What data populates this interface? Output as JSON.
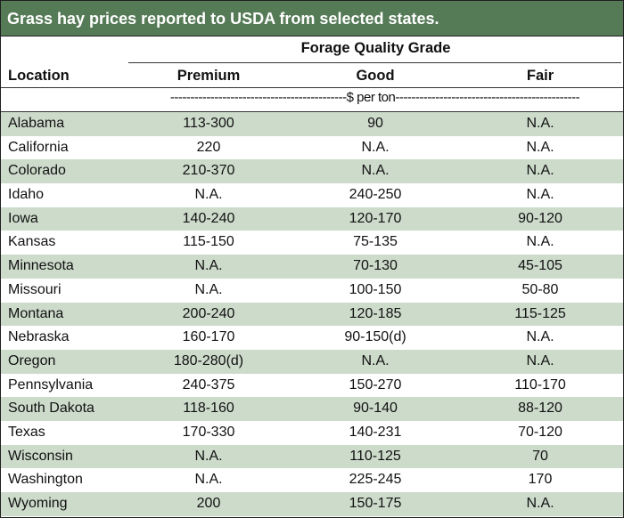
{
  "title": "Grass hay prices reported to USDA from selected states.",
  "header": {
    "group_label": "Forage Quality Grade",
    "location_label": "Location",
    "columns": [
      "Premium",
      "Good",
      "Fair"
    ],
    "unit_label": "--------------------------------------------$ per ton----------------------------------------------"
  },
  "rows": [
    {
      "location": "Alabama",
      "premium": "113-300",
      "good": "90",
      "fair": "N.A."
    },
    {
      "location": "California",
      "premium": "220",
      "good": "N.A.",
      "fair": "N.A."
    },
    {
      "location": "Colorado",
      "premium": "210-370",
      "good": "N.A.",
      "fair": "N.A."
    },
    {
      "location": "Idaho",
      "premium": "N.A.",
      "good": "240-250",
      "fair": "N.A."
    },
    {
      "location": "Iowa",
      "premium": "140-240",
      "good": "120-170",
      "fair": "90-120"
    },
    {
      "location": "Kansas",
      "premium": "115-150",
      "good": "75-135",
      "fair": "N.A."
    },
    {
      "location": "Minnesota",
      "premium": "N.A.",
      "good": "70-130",
      "fair": "45-105"
    },
    {
      "location": "Missouri",
      "premium": "N.A.",
      "good": "100-150",
      "fair": "50-80"
    },
    {
      "location": "Montana",
      "premium": "200-240",
      "good": "120-185",
      "fair": "115-125"
    },
    {
      "location": "Nebraska",
      "premium": "160-170",
      "good": "90-150(d)",
      "fair": "N.A."
    },
    {
      "location": "Oregon",
      "premium": "180-280(d)",
      "good": "N.A.",
      "fair": "N.A."
    },
    {
      "location": "Pennsylvania",
      "premium": "240-375",
      "good": "150-270",
      "fair": "110-170"
    },
    {
      "location": "South Dakota",
      "premium": "118-160",
      "good": "90-140",
      "fair": "88-120"
    },
    {
      "location": "Texas",
      "premium": "170-330",
      "good": "140-231",
      "fair": "70-120"
    },
    {
      "location": "Wisconsin",
      "premium": "N.A.",
      "good": "110-125",
      "fair": "70"
    },
    {
      "location": "Washington",
      "premium": "N.A.",
      "good": "225-245",
      "fair": "170"
    },
    {
      "location": "Wyoming",
      "premium": "200",
      "good": "150-175",
      "fair": "N.A."
    }
  ],
  "colors": {
    "title_bar": "#557a56",
    "row_shade": "#cddbcb"
  }
}
